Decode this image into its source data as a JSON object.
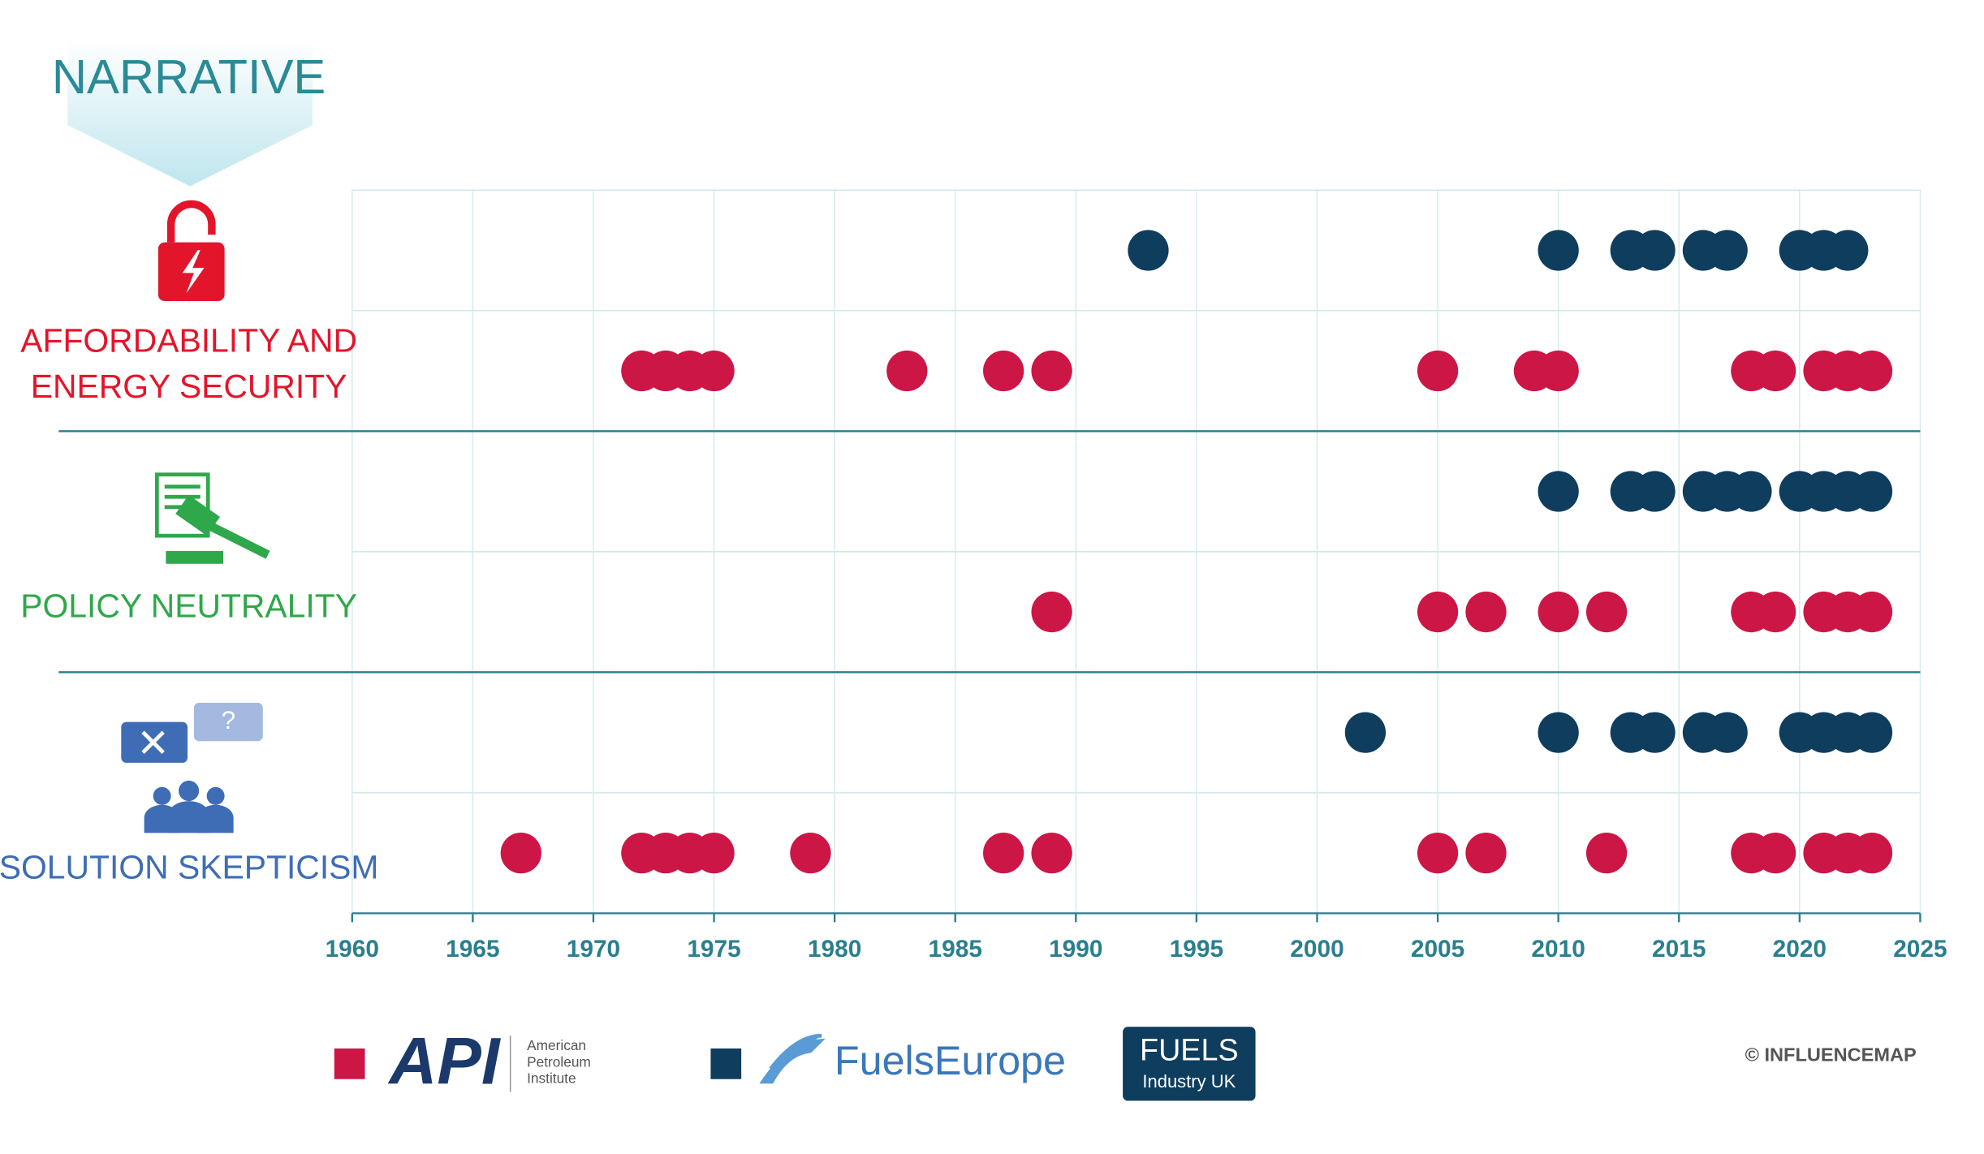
{
  "chart_data": {
    "type": "dot-timeline",
    "header": "NARRATIVE",
    "categories": [
      [
        "AFFORDABILITY AND",
        "ENERGY SECURITY"
      ],
      [
        "POLICY NEUTRALITY"
      ],
      [
        "SOLUTION SKEPTICISM"
      ]
    ],
    "category_colors": [
      "#e3152b",
      "#2ea84a",
      "#3e6db5"
    ],
    "series": [
      {
        "name": "American Petroleum Institute",
        "logo": "API",
        "color": "#cc1646",
        "values": [
          [
            1972,
            1973,
            1974,
            1975,
            1983,
            1987,
            1989,
            2005,
            2009,
            2010,
            2018,
            2019,
            2021,
            2022,
            2023
          ],
          [
            1989,
            2005,
            2007,
            2010,
            2012,
            2018,
            2019,
            2021,
            2022,
            2023
          ],
          [
            1967,
            1972,
            1973,
            1974,
            1975,
            1979,
            1987,
            1989,
            2005,
            2007,
            2012,
            2018,
            2019,
            2021,
            2022,
            2023
          ]
        ]
      },
      {
        "name": "FuelsEurope",
        "logo": [
          "FUELS",
          "Industry UK"
        ],
        "color": "#0e3d5e",
        "values": [
          [
            1993,
            2010,
            2013,
            2014,
            2016,
            2017,
            2020,
            2021,
            2022
          ],
          [
            2010,
            2013,
            2014,
            2016,
            2017,
            2018,
            2020,
            2021,
            2022,
            2023
          ],
          [
            2002,
            2010,
            2013,
            2014,
            2016,
            2017,
            2020,
            2021,
            2022,
            2023
          ]
        ]
      }
    ],
    "xlim": [
      1960,
      2025
    ],
    "xticks": [
      1960,
      1965,
      1970,
      1975,
      1980,
      1985,
      1990,
      1995,
      2000,
      2005,
      2010,
      2015,
      2020,
      2025
    ],
    "grid": true,
    "copyright": "© INFLUENCEMAP"
  }
}
